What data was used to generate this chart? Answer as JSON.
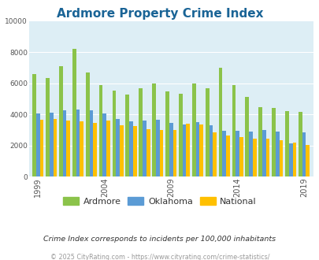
{
  "title": "Ardmore Property Crime Index",
  "title_color": "#1a6496",
  "years": [
    1999,
    2000,
    2001,
    2002,
    2003,
    2004,
    2005,
    2006,
    2007,
    2008,
    2009,
    2010,
    2011,
    2012,
    2013,
    2014,
    2015,
    2016,
    2017,
    2018,
    2019
  ],
  "ardmore": [
    6600,
    6350,
    7100,
    8200,
    6700,
    5900,
    5550,
    5250,
    5700,
    6000,
    5450,
    5300,
    6000,
    5700,
    7000,
    5900,
    5100,
    4450,
    4400,
    4200,
    4150
  ],
  "oklahoma": [
    4050,
    4100,
    4250,
    4300,
    4250,
    4050,
    3700,
    3550,
    3600,
    3650,
    3450,
    3350,
    3500,
    3300,
    2950,
    2950,
    2900,
    3000,
    2900,
    2150,
    2850
  ],
  "national": [
    3650,
    3700,
    3600,
    3550,
    3450,
    3600,
    3300,
    3250,
    3050,
    3000,
    2980,
    3400,
    3350,
    2850,
    2650,
    2550,
    2450,
    2450,
    2350,
    2200,
    2050
  ],
  "ardmore_color": "#8bc34a",
  "oklahoma_color": "#5b9bd5",
  "national_color": "#ffc000",
  "plot_bg_color": "#ddeef5",
  "ylim": [
    0,
    10000
  ],
  "yticks": [
    0,
    2000,
    4000,
    6000,
    8000,
    10000
  ],
  "xtick_labels": [
    "1999",
    "2004",
    "2009",
    "2014",
    "2019"
  ],
  "xtick_positions": [
    0,
    5,
    10,
    15,
    20
  ],
  "subtitle": "Crime Index corresponds to incidents per 100,000 inhabitants",
  "footer": "© 2025 CityRating.com - https://www.cityrating.com/crime-statistics/",
  "legend_labels": [
    "Ardmore",
    "Oklahoma",
    "National"
  ]
}
